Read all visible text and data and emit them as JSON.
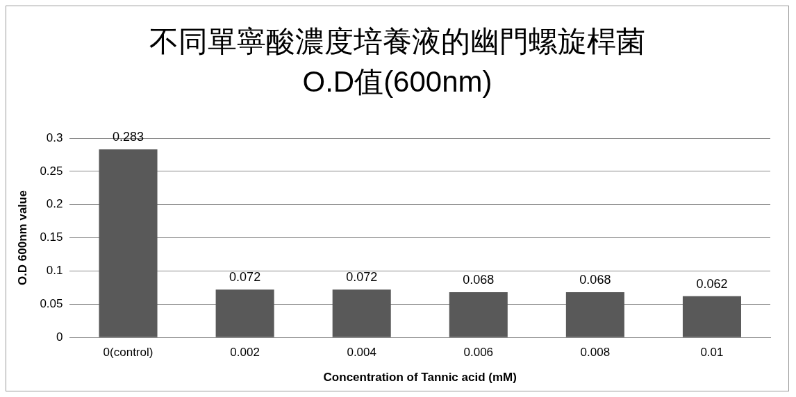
{
  "chart_data": {
    "type": "bar",
    "title": "不同單寧酸濃度培養液的幽門螺旋桿菌O.D值(600nm)",
    "xlabel": "Concentration of Tannic acid (mM)",
    "ylabel": "O.D 600nm value",
    "categories": [
      "0(control)",
      "0.002",
      "0.004",
      "0.006",
      "0.008",
      "0.01"
    ],
    "values": [
      0.283,
      0.072,
      0.072,
      0.068,
      0.068,
      0.062
    ],
    "color": "#595959",
    "ylim": [
      0,
      0.3
    ],
    "yticks": [
      0,
      0.05,
      0.1,
      0.15,
      0.2,
      0.25,
      0.3
    ],
    "grid": "y",
    "data_labels": true,
    "legend": false
  }
}
